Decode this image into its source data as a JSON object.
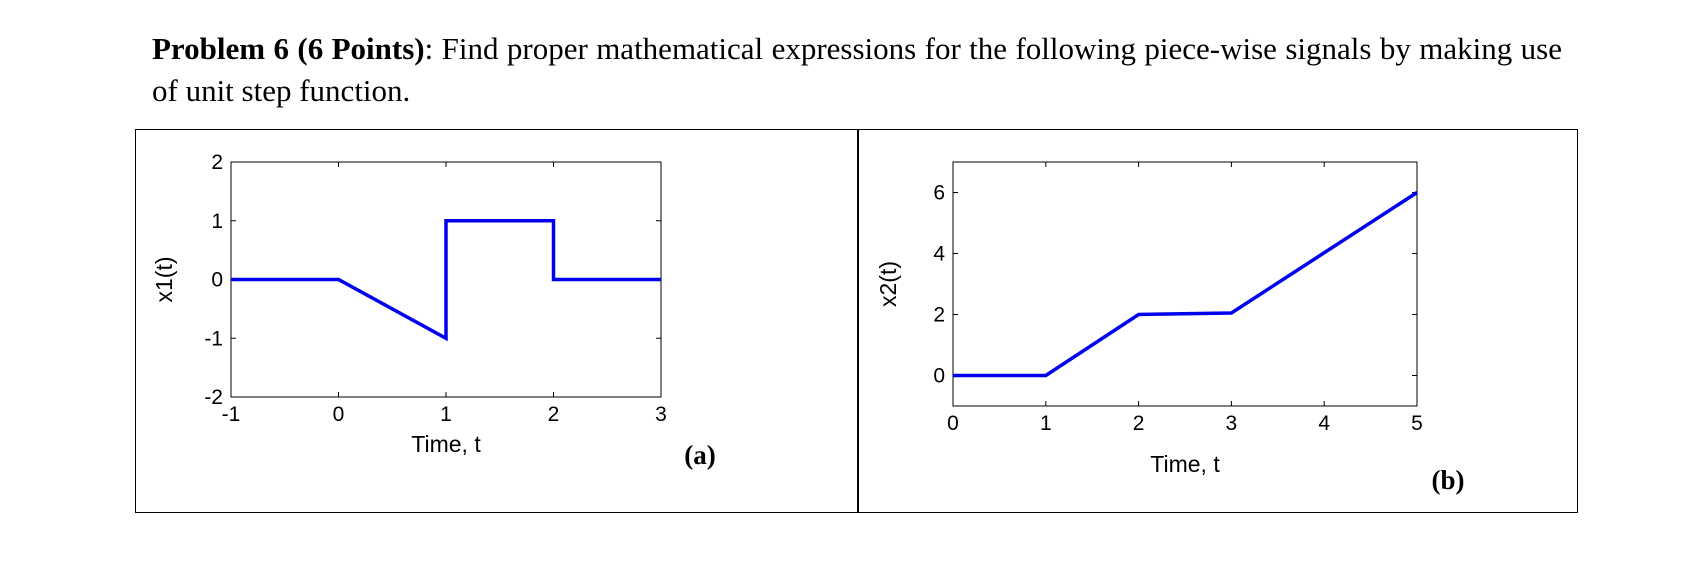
{
  "problem": {
    "title": "Problem 6 (6 Points)",
    "text": ": Find proper mathematical expressions for the following piece-wise signals by making use of unit step function."
  },
  "colors": {
    "signal": "#0000ee",
    "axes": "#000000"
  },
  "chart_data": [
    {
      "type": "line",
      "panel_label": "(a)",
      "xlabel": "Time, t",
      "ylabel": "x1(t)",
      "xlim": [
        -1,
        3
      ],
      "ylim": [
        -2,
        2
      ],
      "xticks": [
        "-1",
        "0",
        "1",
        "2",
        "3"
      ],
      "yticks": [
        "-2",
        "-1",
        "0",
        "1",
        "2"
      ],
      "grid": false,
      "series": [
        {
          "x": [
            -1,
            0,
            1,
            1,
            2,
            2,
            3
          ],
          "y": [
            0,
            0,
            -1,
            1,
            1,
            0,
            0
          ]
        }
      ]
    },
    {
      "type": "line",
      "panel_label": "(b)",
      "xlabel": "Time, t",
      "ylabel": "x2(t)",
      "xlim": [
        0,
        5
      ],
      "ylim": [
        -1,
        7
      ],
      "xticks": [
        "0",
        "1",
        "2",
        "3",
        "4",
        "5"
      ],
      "yticks": [
        "0",
        "2",
        "4",
        "6"
      ],
      "grid": false,
      "series": [
        {
          "x": [
            0,
            1,
            2,
            3,
            5
          ],
          "y": [
            0,
            0,
            2,
            2.05,
            6
          ]
        }
      ]
    }
  ]
}
